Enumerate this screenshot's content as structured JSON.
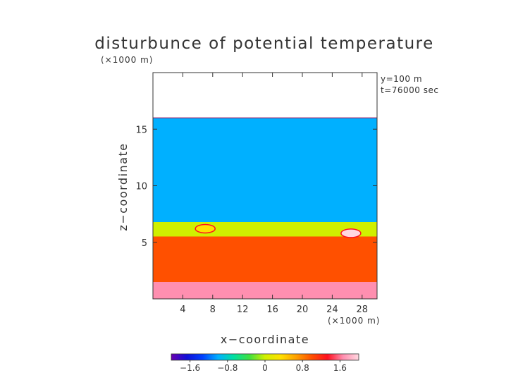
{
  "chart_data": {
    "type": "heatmap",
    "title": "disturbunce of potential temperature",
    "xlabel": "x−coordinate",
    "ylabel": "z−coordinate",
    "x_unit_label": "(×1000 m)",
    "y_unit_label": "(×1000 m)",
    "annotations": [
      "y=100  m",
      "t=76000 sec"
    ],
    "xlim": [
      0,
      30
    ],
    "ylim": [
      0,
      20
    ],
    "x_ticks": [
      4,
      8,
      12,
      16,
      20,
      24,
      28
    ],
    "x_tick_labels": [
      "4",
      "8",
      "12",
      "16",
      "20",
      "24",
      "28"
    ],
    "y_ticks": [
      5,
      10,
      15
    ],
    "y_tick_labels": [
      "5",
      "10",
      "15"
    ],
    "colorbar": {
      "range": [
        -2.0,
        2.0
      ],
      "ticks": [
        -1.6,
        -0.8,
        0,
        0.8,
        1.6
      ],
      "tick_labels": [
        "−1.6",
        "−0.8",
        "0",
        "0.8",
        "1.6"
      ],
      "colors": [
        "#6a00b0",
        "#1010d8",
        "#0040ff",
        "#00b0ff",
        "#00e0a0",
        "#40e040",
        "#d0f000",
        "#ffe000",
        "#ffa000",
        "#ff5000",
        "#ff1020",
        "#ff8fb0",
        "#ffd8e0"
      ]
    },
    "regions": [
      {
        "z_range": [
          16.0,
          20.0
        ],
        "value": null,
        "description": "no data above domain top"
      },
      {
        "z_range": [
          6.8,
          16.0
        ],
        "value": -1.0
      },
      {
        "z_range": [
          5.5,
          6.8
        ],
        "value": 0.0
      },
      {
        "z_range": [
          1.5,
          5.5
        ],
        "value": 1.1
      },
      {
        "z_range": [
          0.0,
          1.5
        ],
        "value": 1.7
      }
    ],
    "features": [
      {
        "x": 26.5,
        "z": 5.8,
        "value": 2.0
      },
      {
        "x": 7.0,
        "z": 6.2,
        "value": 0.2
      }
    ]
  }
}
